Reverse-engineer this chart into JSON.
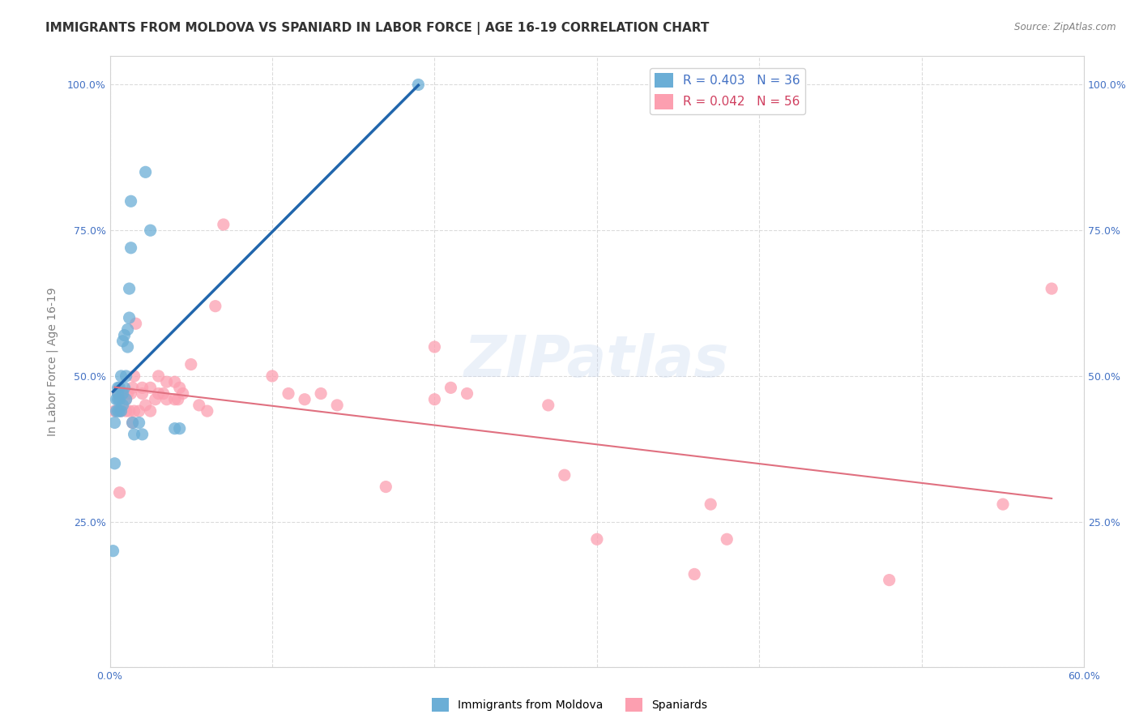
{
  "title": "IMMIGRANTS FROM MOLDOVA VS SPANIARD IN LABOR FORCE | AGE 16-19 CORRELATION CHART",
  "source": "Source: ZipAtlas.com",
  "ylabel": "In Labor Force | Age 16-19",
  "xlim": [
    0.0,
    0.6
  ],
  "ylim": [
    0.0,
    1.05
  ],
  "legend_r1": "R = 0.403   N = 36",
  "legend_r2": "R = 0.042   N = 56",
  "blue_color": "#6baed6",
  "pink_color": "#fc9fb0",
  "blue_line_color": "#2166ac",
  "pink_line_color": "#e07080",
  "blue_text_color": "#4472c4",
  "pink_text_color": "#d04060",
  "watermark": "ZIPatlas",
  "moldova_x": [
    0.002,
    0.003,
    0.003,
    0.004,
    0.004,
    0.005,
    0.005,
    0.005,
    0.005,
    0.006,
    0.006,
    0.006,
    0.007,
    0.007,
    0.008,
    0.008,
    0.008,
    0.009,
    0.009,
    0.01,
    0.01,
    0.011,
    0.011,
    0.012,
    0.012,
    0.013,
    0.013,
    0.014,
    0.015,
    0.018,
    0.02,
    0.022,
    0.025,
    0.04,
    0.043,
    0.19
  ],
  "moldova_y": [
    0.2,
    0.35,
    0.42,
    0.44,
    0.46,
    0.44,
    0.46,
    0.47,
    0.48,
    0.44,
    0.46,
    0.48,
    0.44,
    0.5,
    0.45,
    0.47,
    0.56,
    0.48,
    0.57,
    0.46,
    0.5,
    0.55,
    0.58,
    0.6,
    0.65,
    0.72,
    0.8,
    0.42,
    0.4,
    0.42,
    0.4,
    0.85,
    0.75,
    0.41,
    0.41,
    1.0
  ],
  "spaniard_x": [
    0.003,
    0.005,
    0.006,
    0.007,
    0.008,
    0.01,
    0.01,
    0.011,
    0.012,
    0.013,
    0.014,
    0.014,
    0.015,
    0.015,
    0.016,
    0.018,
    0.02,
    0.02,
    0.022,
    0.025,
    0.025,
    0.028,
    0.03,
    0.03,
    0.033,
    0.035,
    0.035,
    0.04,
    0.04,
    0.042,
    0.043,
    0.045,
    0.05,
    0.055,
    0.06,
    0.065,
    0.07,
    0.1,
    0.11,
    0.12,
    0.13,
    0.14,
    0.17,
    0.2,
    0.2,
    0.21,
    0.22,
    0.27,
    0.28,
    0.3,
    0.36,
    0.37,
    0.38,
    0.48,
    0.55,
    0.58
  ],
  "spaniard_y": [
    0.44,
    0.47,
    0.3,
    0.44,
    0.47,
    0.44,
    0.46,
    0.47,
    0.44,
    0.47,
    0.42,
    0.48,
    0.44,
    0.5,
    0.59,
    0.44,
    0.47,
    0.48,
    0.45,
    0.44,
    0.48,
    0.46,
    0.47,
    0.5,
    0.47,
    0.46,
    0.49,
    0.46,
    0.49,
    0.46,
    0.48,
    0.47,
    0.52,
    0.45,
    0.44,
    0.62,
    0.76,
    0.5,
    0.47,
    0.46,
    0.47,
    0.45,
    0.31,
    0.46,
    0.55,
    0.48,
    0.47,
    0.45,
    0.33,
    0.22,
    0.16,
    0.28,
    0.22,
    0.15,
    0.28,
    0.65
  ],
  "title_fontsize": 11,
  "axis_label_fontsize": 10,
  "tick_fontsize": 9
}
